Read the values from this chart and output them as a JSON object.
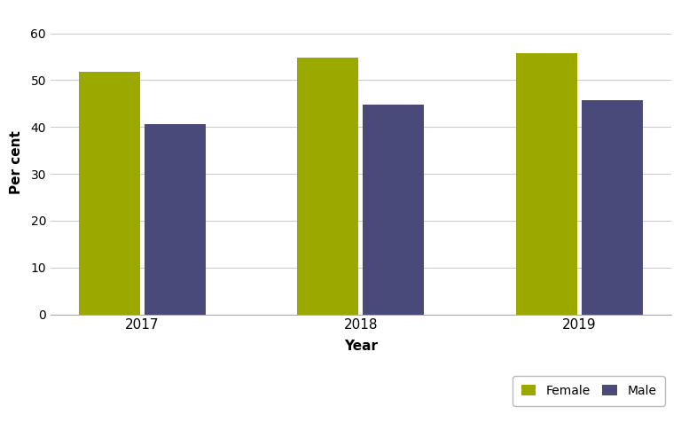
{
  "years": [
    "2017",
    "2018",
    "2019"
  ],
  "female_values": [
    51.7,
    54.8,
    55.7
  ],
  "male_values": [
    40.7,
    44.8,
    45.7
  ],
  "female_color": "#9aa800",
  "male_color": "#4a4a7a",
  "xlabel": "Year",
  "ylabel": "Per cent",
  "ylim": [
    0,
    65
  ],
  "yticks": [
    0,
    10,
    20,
    30,
    40,
    50,
    60
  ],
  "legend_labels": [
    "Female",
    "Male"
  ],
  "bar_width": 0.28,
  "background_color": "#ffffff",
  "grid_color": "#cccccc",
  "axes_color": "#999999"
}
